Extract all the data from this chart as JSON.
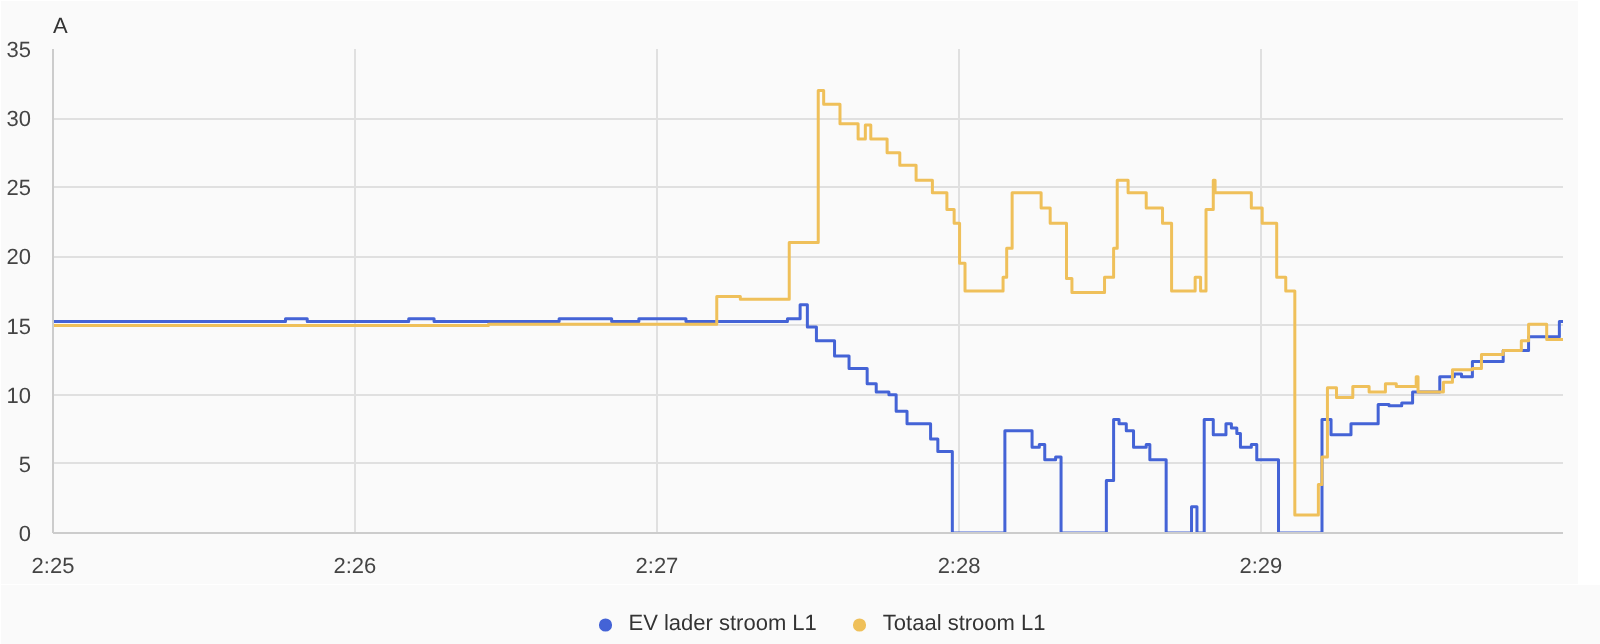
{
  "chart_data": {
    "type": "step",
    "ylabel": "A",
    "xlim": [
      2.41667,
      2.5
    ],
    "ylim": [
      0,
      35
    ],
    "xticks": [
      {
        "value": 2.41667,
        "label": "2:25"
      },
      {
        "value": 2.43333,
        "label": "2:26"
      },
      {
        "value": 2.45,
        "label": "2:27"
      },
      {
        "value": 2.46667,
        "label": "2:28"
      },
      {
        "value": 2.48333,
        "label": "2:29"
      }
    ],
    "yticks": [
      0,
      5,
      10,
      15,
      20,
      25,
      30,
      35
    ],
    "grid": true,
    "legend": "bottom",
    "marker": "none",
    "line_style": "solid",
    "series": [
      {
        "name": "EV lader stroom L1",
        "color": "#4463d6",
        "x": [
          2.4167,
          2.4295,
          2.4307,
          2.4363,
          2.4377,
          2.4446,
          2.4475,
          2.449,
          2.4516,
          2.4572,
          2.4579,
          2.4583,
          2.4588,
          2.4598,
          2.4606,
          2.4616,
          2.4621,
          2.4628,
          2.4632,
          2.4638,
          2.4651,
          2.4655,
          2.4663,
          2.4692,
          2.4707,
          2.4711,
          2.4714,
          2.472,
          2.4723,
          2.4748,
          2.4752,
          2.4755,
          2.4759,
          2.4763,
          2.477,
          2.4772,
          2.4781,
          2.4795,
          2.4798,
          2.4802,
          2.4807,
          2.4814,
          2.4817,
          2.482,
          2.4822,
          2.4828,
          2.4831,
          2.4843,
          2.4867,
          2.4872,
          2.4883,
          2.4898,
          2.4904,
          2.4911,
          2.4917,
          2.4932,
          2.494,
          2.4944,
          2.495,
          2.4967,
          2.4981,
          2.4998,
          2.5
        ],
        "values": [
          15.3,
          15.5,
          15.3,
          15.5,
          15.3,
          15.5,
          15.3,
          15.5,
          15.3,
          15.5,
          16.5,
          14.9,
          13.9,
          12.8,
          11.9,
          10.8,
          10.2,
          10.0,
          8.8,
          7.9,
          6.8,
          5.9,
          0,
          7.4,
          6.2,
          6.4,
          5.3,
          5.5,
          0,
          3.8,
          8.2,
          7.9,
          7.4,
          6.2,
          6.4,
          5.3,
          0,
          1.9,
          0,
          8.2,
          7.1,
          7.9,
          7.6,
          7.2,
          6.2,
          6.4,
          5.3,
          0,
          8.2,
          7.1,
          7.9,
          9.3,
          9.2,
          9.4,
          10.2,
          11.3,
          11.5,
          11.3,
          12.4,
          13.2,
          14.2,
          15.3,
          15.3
        ]
      },
      {
        "name": "Totaal stroom L1",
        "color": "#efc05a",
        "x": [
          2.4167,
          2.4407,
          2.4533,
          2.4546,
          2.4573,
          2.4589,
          2.4592,
          2.4601,
          2.4611,
          2.4615,
          2.4618,
          2.4627,
          2.4634,
          2.4643,
          2.4652,
          2.466,
          2.4664,
          2.4667,
          2.467,
          2.4691,
          2.4693,
          2.4696,
          2.4712,
          2.4717,
          2.4726,
          2.4729,
          2.4747,
          2.4752,
          2.4754,
          2.476,
          2.477,
          2.4779,
          2.4784,
          2.4797,
          2.48,
          2.4803,
          2.4807,
          2.4808,
          2.4828,
          2.4834,
          2.4842,
          2.4847,
          2.4852,
          2.4865,
          2.4867,
          2.487,
          2.4875,
          2.4884,
          2.4893,
          2.4902,
          2.4908,
          2.4919,
          2.492,
          2.4934,
          2.4939,
          2.495,
          2.4955,
          2.4967,
          2.4977,
          2.4981,
          2.4991,
          2.5
        ],
        "values": [
          15.0,
          15.1,
          17.1,
          16.9,
          21.0,
          32.0,
          31.0,
          29.6,
          28.5,
          29.5,
          28.5,
          27.5,
          26.6,
          25.5,
          24.6,
          23.4,
          22.4,
          19.5,
          17.5,
          18.5,
          20.6,
          24.6,
          23.5,
          22.4,
          18.4,
          17.4,
          18.5,
          20.6,
          25.5,
          24.6,
          23.5,
          22.4,
          17.5,
          18.5,
          17.5,
          23.4,
          25.5,
          24.6,
          23.5,
          22.4,
          18.5,
          17.5,
          1.3,
          3.5,
          5.5,
          10.5,
          9.8,
          10.6,
          10.2,
          10.8,
          10.6,
          11.3,
          10.2,
          10.9,
          11.8,
          11.9,
          12.9,
          13.2,
          13.9,
          15.1,
          14.0,
          14.0
        ]
      }
    ]
  }
}
